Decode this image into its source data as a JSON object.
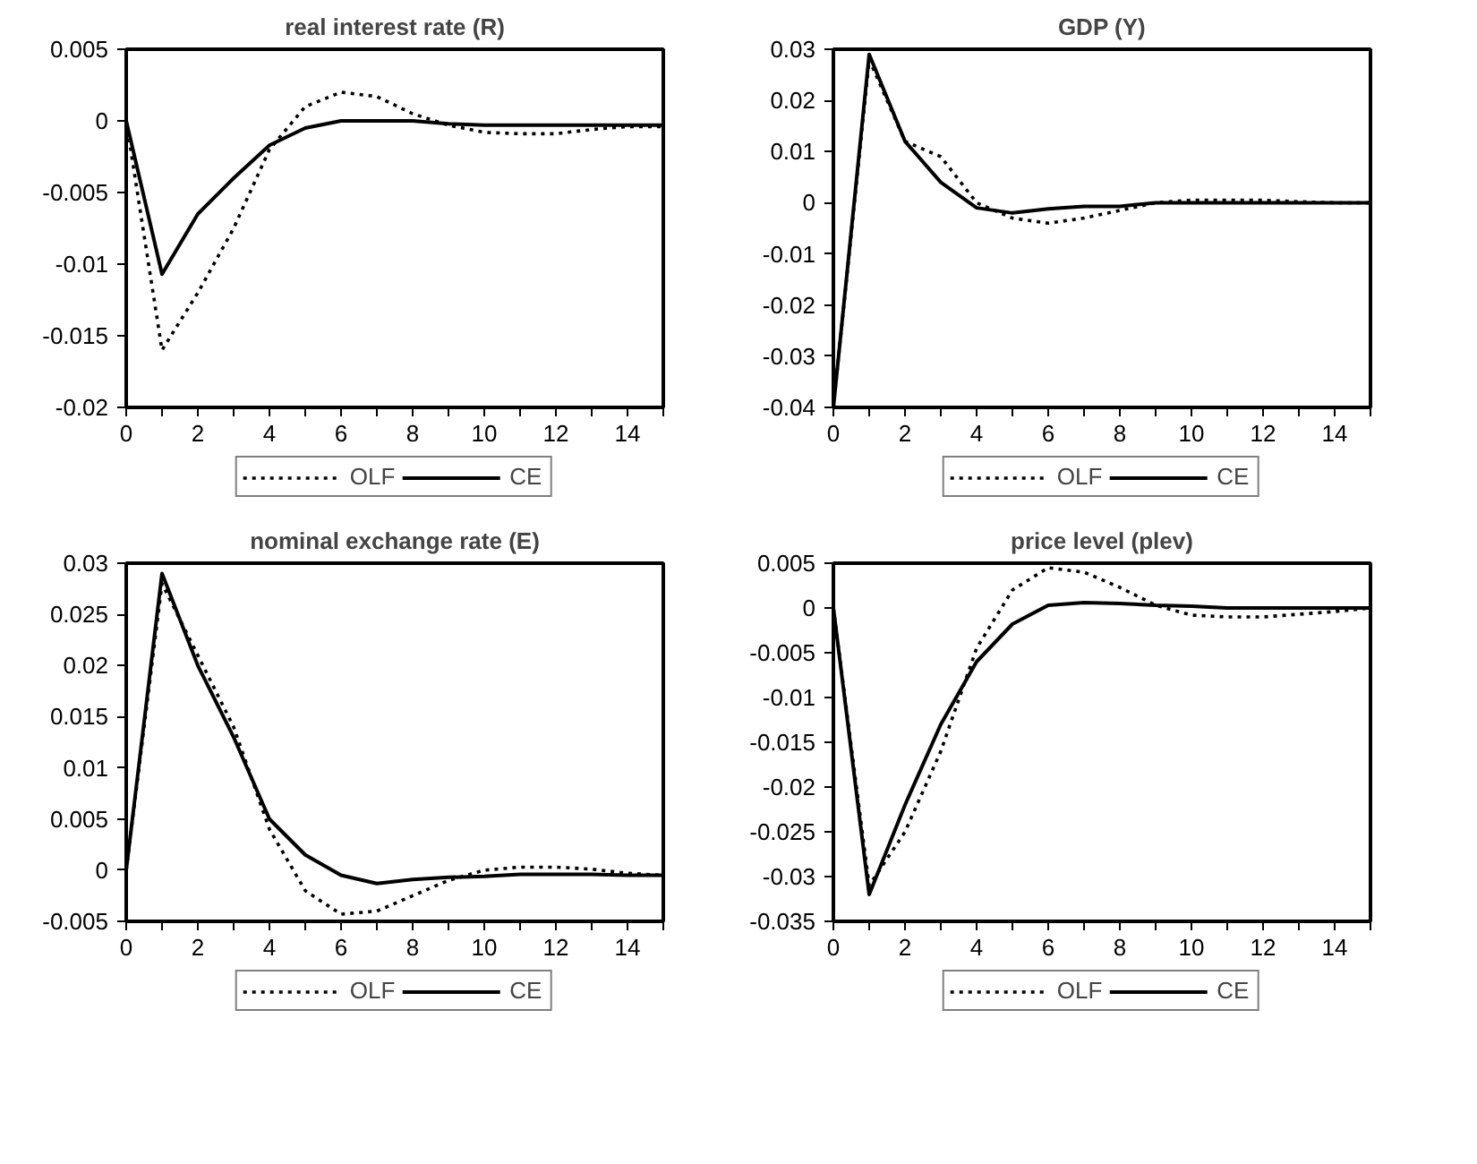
{
  "chart_data": [
    {
      "type": "line",
      "title": "real interest rate (R)",
      "x": [
        0,
        1,
        2,
        3,
        4,
        5,
        6,
        7,
        8,
        9,
        10,
        11,
        12,
        13,
        14,
        15
      ],
      "xlim": [
        0,
        15
      ],
      "ylim": [
        -0.02,
        0.005
      ],
      "xticks": [
        0,
        {
          "value": 1,
          "label": null
        },
        2,
        {
          "value": 3,
          "label": null
        },
        4,
        {
          "value": 5,
          "label": null
        },
        6,
        {
          "value": 7,
          "label": null
        },
        8,
        {
          "value": 9,
          "label": null
        },
        10,
        {
          "value": 11,
          "label": null
        },
        12,
        {
          "value": 13,
          "label": null
        },
        14,
        {
          "value": 15,
          "label": null
        }
      ],
      "yticks": [
        -0.02,
        -0.015,
        -0.01,
        -0.005,
        0,
        0.005
      ],
      "grid": false,
      "legend": "bottom",
      "marker": "none",
      "series": [
        {
          "name": "OLF",
          "color": "#000000",
          "line_style": "dotted",
          "values": [
            0,
            -0.016,
            -0.012,
            -0.0075,
            -0.002,
            0.001,
            0.002,
            0.0017,
            0.0005,
            -0.0003,
            -0.0008,
            -0.0009,
            -0.0009,
            -0.0006,
            -0.0004,
            -0.0004
          ]
        },
        {
          "name": "CE",
          "color": "#000000",
          "line_style": "solid",
          "values": [
            0,
            -0.0107,
            -0.0065,
            -0.004,
            -0.0017,
            -0.0005,
            0,
            0,
            0,
            -0.0002,
            -0.0003,
            -0.0003,
            -0.0003,
            -0.0003,
            -0.0003,
            -0.0003
          ]
        }
      ]
    },
    {
      "type": "line",
      "title": "GDP (Y)",
      "x": [
        0,
        1,
        2,
        3,
        4,
        5,
        6,
        7,
        8,
        9,
        10,
        11,
        12,
        13,
        14,
        15
      ],
      "xlim": [
        0,
        15
      ],
      "ylim": [
        -0.04,
        0.03
      ],
      "xticks": [
        0,
        {
          "value": 1,
          "label": null
        },
        2,
        {
          "value": 3,
          "label": null
        },
        4,
        {
          "value": 5,
          "label": null
        },
        6,
        {
          "value": 7,
          "label": null
        },
        8,
        {
          "value": 9,
          "label": null
        },
        10,
        {
          "value": 11,
          "label": null
        },
        12,
        {
          "value": 13,
          "label": null
        },
        14,
        {
          "value": 15,
          "label": null
        }
      ],
      "yticks": [
        -0.04,
        -0.03,
        -0.02,
        -0.01,
        0,
        0.01,
        0.02,
        0.03
      ],
      "grid": false,
      "legend": "bottom",
      "marker": "none",
      "series": [
        {
          "name": "OLF",
          "color": "#000000",
          "line_style": "dotted",
          "values": [
            -0.04,
            0.028,
            0.012,
            0.009,
            0,
            -0.003,
            -0.004,
            -0.003,
            -0.0015,
            0,
            0.0005,
            0.0005,
            0.0005,
            0.0002,
            0,
            0
          ]
        },
        {
          "name": "CE",
          "color": "#000000",
          "line_style": "solid",
          "values": [
            -0.04,
            0.029,
            0.012,
            0.004,
            -0.001,
            -0.002,
            -0.0012,
            -0.0007,
            -0.0007,
            0,
            0,
            0,
            0,
            0,
            0,
            0
          ]
        }
      ]
    },
    {
      "type": "line",
      "title": "nominal exchange rate (E)",
      "x": [
        0,
        1,
        2,
        3,
        4,
        5,
        6,
        7,
        8,
        9,
        10,
        11,
        12,
        13,
        14,
        15
      ],
      "xlim": [
        0,
        15
      ],
      "ylim": [
        -0.005,
        0.03
      ],
      "xticks": [
        0,
        {
          "value": 1,
          "label": null
        },
        2,
        {
          "value": 3,
          "label": null
        },
        4,
        {
          "value": 5,
          "label": null
        },
        6,
        {
          "value": 7,
          "label": null
        },
        8,
        {
          "value": 9,
          "label": null
        },
        10,
        {
          "value": 11,
          "label": null
        },
        12,
        {
          "value": 13,
          "label": null
        },
        14,
        {
          "value": 15,
          "label": null
        }
      ],
      "yticks": [
        -0.005,
        0,
        0.005,
        0.01,
        0.015,
        0.02,
        0.025,
        0.03
      ],
      "grid": false,
      "legend": "bottom",
      "marker": "none",
      "series": [
        {
          "name": "OLF",
          "color": "#000000",
          "line_style": "dotted",
          "values": [
            0,
            0.028,
            0.021,
            0.014,
            0.004,
            -0.002,
            -0.0043,
            -0.004,
            -0.0025,
            -0.001,
            0,
            0.0003,
            0.0003,
            0.0001,
            -0.0003,
            -0.0005
          ]
        },
        {
          "name": "CE",
          "color": "#000000",
          "line_style": "solid",
          "values": [
            0,
            0.029,
            0.02,
            0.013,
            0.005,
            0.0015,
            -0.0005,
            -0.0013,
            -0.0009,
            -0.0007,
            -0.0006,
            -0.0004,
            -0.0004,
            -0.0004,
            -0.0005,
            -0.0005
          ]
        }
      ]
    },
    {
      "type": "line",
      "title": "price level (plev)",
      "x": [
        0,
        1,
        2,
        3,
        4,
        5,
        6,
        7,
        8,
        9,
        10,
        11,
        12,
        13,
        14,
        15
      ],
      "xlim": [
        0,
        15
      ],
      "ylim": [
        -0.035,
        0.005
      ],
      "xticks": [
        0,
        {
          "value": 1,
          "label": null
        },
        2,
        {
          "value": 3,
          "label": null
        },
        4,
        {
          "value": 5,
          "label": null
        },
        6,
        {
          "value": 7,
          "label": null
        },
        8,
        {
          "value": 9,
          "label": null
        },
        10,
        {
          "value": 11,
          "label": null
        },
        12,
        {
          "value": 13,
          "label": null
        },
        14,
        {
          "value": 15,
          "label": null
        }
      ],
      "yticks": [
        -0.035,
        -0.03,
        -0.025,
        -0.02,
        -0.015,
        -0.01,
        -0.005,
        0,
        0.005
      ],
      "grid": false,
      "legend": "bottom",
      "marker": "none",
      "series": [
        {
          "name": "OLF",
          "color": "#000000",
          "line_style": "dotted",
          "values": [
            0,
            -0.031,
            -0.025,
            -0.016,
            -0.0045,
            0.002,
            0.0045,
            0.004,
            0.0023,
            0.0003,
            -0.0008,
            -0.001,
            -0.001,
            -0.0007,
            -0.0004,
            0
          ]
        },
        {
          "name": "CE",
          "color": "#000000",
          "line_style": "solid",
          "values": [
            0,
            -0.032,
            -0.022,
            -0.013,
            -0.006,
            -0.0018,
            0.0003,
            0.0006,
            0.0005,
            0.0003,
            0.0002,
            0,
            0,
            0,
            0,
            0
          ]
        }
      ]
    }
  ]
}
